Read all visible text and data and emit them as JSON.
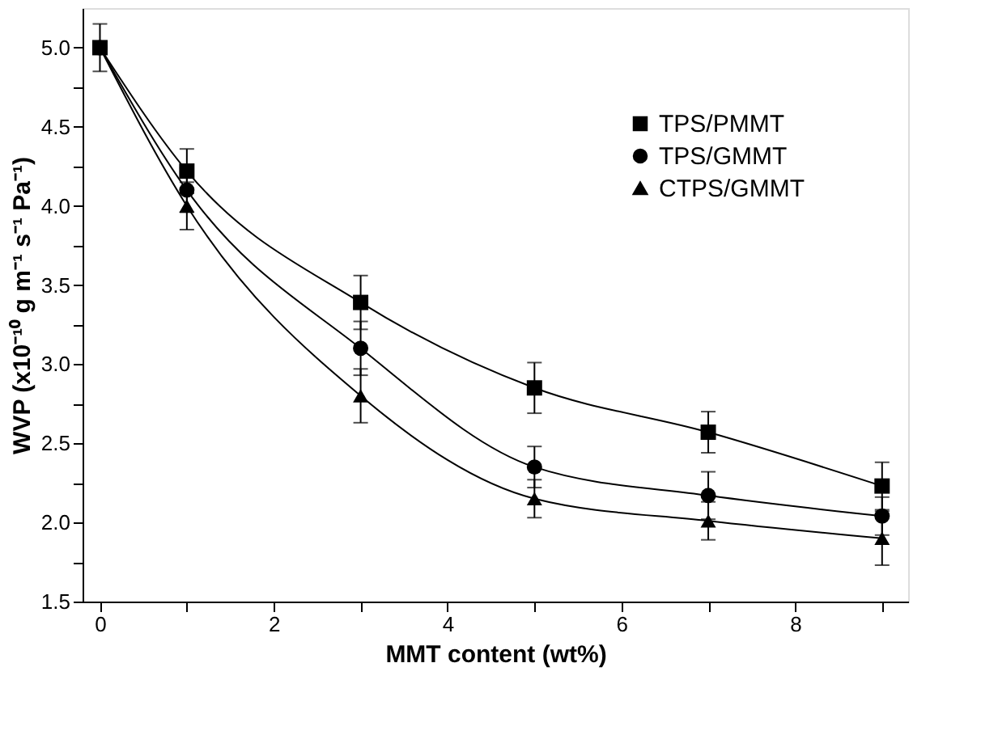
{
  "chart_data": {
    "type": "line",
    "xlabel": "MMT content (wt%)",
    "ylabel": "WVP (x10⁻¹⁰ g m⁻¹ s⁻¹ Pa⁻¹)",
    "x": [
      0,
      1,
      3,
      5,
      7,
      9
    ],
    "series": [
      {
        "name": "TPS/PMMT",
        "color": "#000000",
        "marker": "square",
        "values": [
          5.0,
          4.22,
          3.39,
          2.85,
          2.57,
          2.23
        ],
        "errors": [
          0.15,
          0.14,
          0.17,
          0.16,
          0.13,
          0.15
        ]
      },
      {
        "name": "TPS/GMMT",
        "color": "#000000",
        "marker": "circle",
        "values": [
          5.0,
          4.1,
          3.1,
          2.35,
          2.17,
          2.04
        ],
        "errors": [
          null,
          0.14,
          0.17,
          0.13,
          0.15,
          0.12
        ]
      },
      {
        "name": "CTPS/GMMT",
        "color": "#000000",
        "marker": "triangle",
        "values": [
          5.0,
          4.0,
          2.8,
          2.15,
          2.01,
          1.9
        ],
        "errors": [
          null,
          0.15,
          0.17,
          0.12,
          0.12,
          0.17
        ]
      }
    ],
    "xlim": [
      -0.2,
      9.3
    ],
    "xticks": [
      0,
      {
        "value": 1,
        "label": null
      },
      2,
      {
        "value": 3,
        "label": null
      },
      4,
      {
        "value": 5,
        "label": null
      },
      6,
      {
        "value": 7,
        "label": null
      },
      8,
      {
        "value": 9,
        "label": null
      }
    ],
    "ylim": [
      1.5,
      5.25
    ],
    "yticks": [
      1.5,
      {
        "value": 1.75,
        "label": null
      },
      {
        "value": 2,
        "label": "2.0"
      },
      {
        "value": 2.25,
        "label": null
      },
      2.5,
      {
        "value": 2.75,
        "label": null
      },
      {
        "value": 3,
        "label": "3.0"
      },
      {
        "value": 3.25,
        "label": null
      },
      3.5,
      {
        "value": 3.75,
        "label": null
      },
      {
        "value": 4,
        "label": "4.0"
      },
      {
        "value": 4.25,
        "label": null
      },
      4.5,
      {
        "value": 4.75,
        "label": null
      },
      {
        "value": 5,
        "label": "5.0"
      }
    ],
    "grid": false,
    "legend": "top right",
    "line_style": "solid"
  }
}
